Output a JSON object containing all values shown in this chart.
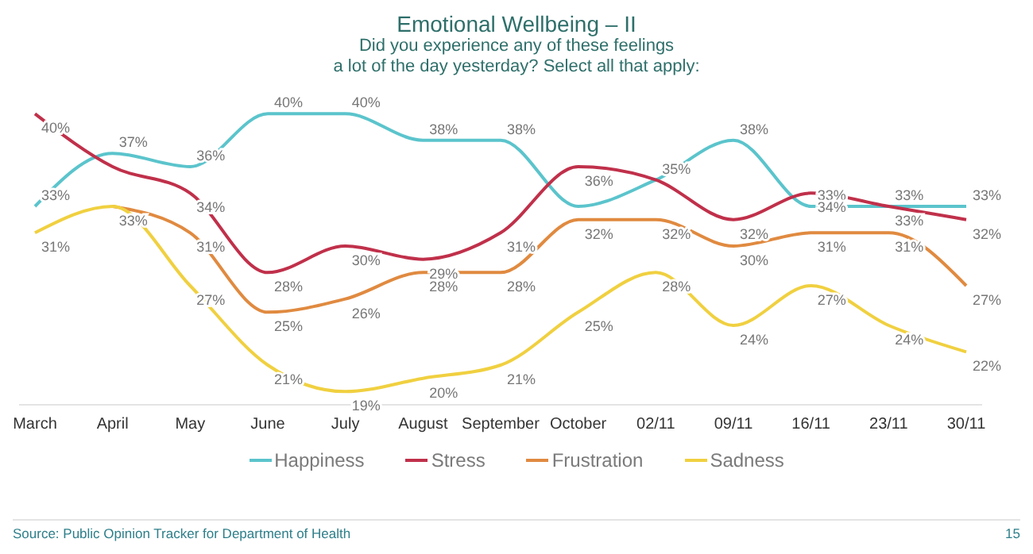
{
  "chart_data": {
    "type": "line",
    "title": "Emotional Wellbeing – II",
    "subtitle": "Did you experience any of these feelings\na lot of the day yesterday? Select all that apply:",
    "categories": [
      "March",
      "April",
      "May",
      "June",
      "July",
      "August",
      "September",
      "October",
      "02/11",
      "09/11",
      "16/11",
      "23/11",
      "30/11"
    ],
    "series": [
      {
        "name": "Happiness",
        "color": "#5bc4cc",
        "values": [
          33,
          37,
          36,
          40,
          40,
          38,
          38,
          33,
          35,
          38,
          33,
          33,
          33
        ],
        "value_labels": [
          "33%",
          "37%",
          "36%",
          "40%",
          "40%",
          "38%",
          "38%",
          null,
          "35%",
          "38%",
          "33%",
          "33%",
          "33%"
        ]
      },
      {
        "name": "Stress",
        "color": "#c0304a",
        "values": [
          40,
          36,
          34,
          28,
          30,
          29,
          31,
          36,
          35,
          32,
          34,
          33,
          32
        ],
        "value_labels": [
          "40%",
          null,
          "34%",
          "28%",
          "30%",
          "29%",
          "31%",
          "36%",
          null,
          "32%",
          "34%",
          "33%",
          "32%"
        ]
      },
      {
        "name": "Frustration",
        "color": "#e08a40",
        "values": [
          null,
          33,
          31,
          25,
          26,
          28,
          28,
          32,
          32,
          30,
          31,
          31,
          27
        ],
        "value_labels": [
          null,
          "33%",
          "31%",
          "25%",
          "26%",
          "28%",
          "28%",
          "32%",
          "32%",
          "30%",
          "31%",
          "31%",
          "27%"
        ]
      },
      {
        "name": "Sadness",
        "color": "#f0d040",
        "values": [
          31,
          33,
          27,
          21,
          19,
          20,
          21,
          25,
          28,
          24,
          27,
          24,
          22
        ],
        "value_labels": [
          "31%",
          null,
          "27%",
          "21%",
          "19%",
          "20%",
          "21%",
          "25%",
          "28%",
          "24%",
          "27%",
          "24%",
          "22%"
        ]
      }
    ],
    "tick_labels": "x",
    "grid": false,
    "legend": "bottom",
    "marker": "none",
    "line_style": "solid",
    "annotations": [
      "Source: Public Opinion Tracker for Department of Health",
      "15"
    ]
  }
}
